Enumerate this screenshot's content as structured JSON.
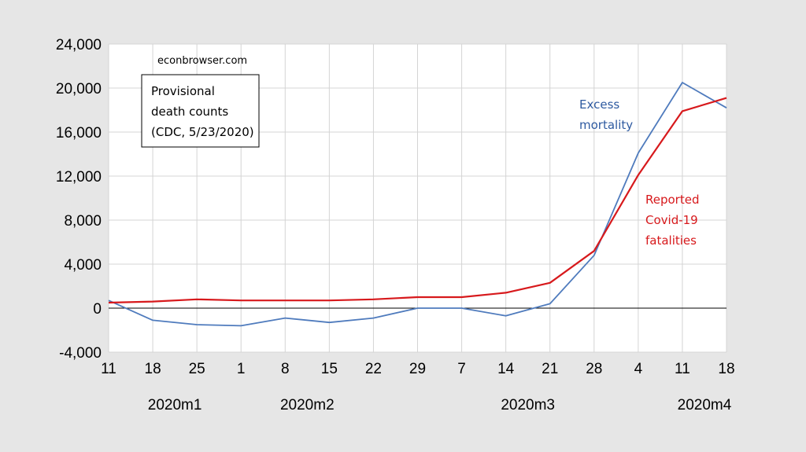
{
  "chart_data": {
    "type": "line",
    "source_note": "econbrowser.com",
    "box_note": [
      "Provisional",
      "death counts",
      "(CDC, 5/23/2020)"
    ],
    "x_ticks": [
      "11",
      "18",
      "25",
      "1",
      "8",
      "15",
      "22",
      "29",
      "7",
      "14",
      "21",
      "28",
      "4",
      "11",
      "18"
    ],
    "months": [
      {
        "label": "2020m1",
        "center_index": 1.5
      },
      {
        "label": "2020m2",
        "center_index": 4.5
      },
      {
        "label": "2020m3",
        "center_index": 9.5
      },
      {
        "label": "2020m4",
        "center_index": 13.5
      }
    ],
    "y_ticks": [
      "-4,000",
      "0",
      "4,000",
      "8,000",
      "12,000",
      "16,000",
      "20,000",
      "24,000"
    ],
    "ylim": [
      -4000,
      24000
    ],
    "grid": true,
    "series": [
      {
        "name": "Excess mortality",
        "label_lines": [
          "Excess",
          "mortality"
        ],
        "color": "#4f7bbd",
        "values": [
          700,
          -1100,
          -1500,
          -1600,
          -900,
          -1300,
          -900,
          0,
          0,
          -700,
          400,
          4800,
          14100,
          20500,
          18200
        ]
      },
      {
        "name": "Reported Covid-19 fatalities",
        "label_lines": [
          "Reported",
          "Covid-19",
          "fatalities"
        ],
        "color": "#d7191c",
        "values": [
          500,
          600,
          800,
          700,
          700,
          700,
          800,
          1000,
          1000,
          1400,
          2300,
          5200,
          12100,
          17900,
          19100
        ]
      }
    ]
  }
}
